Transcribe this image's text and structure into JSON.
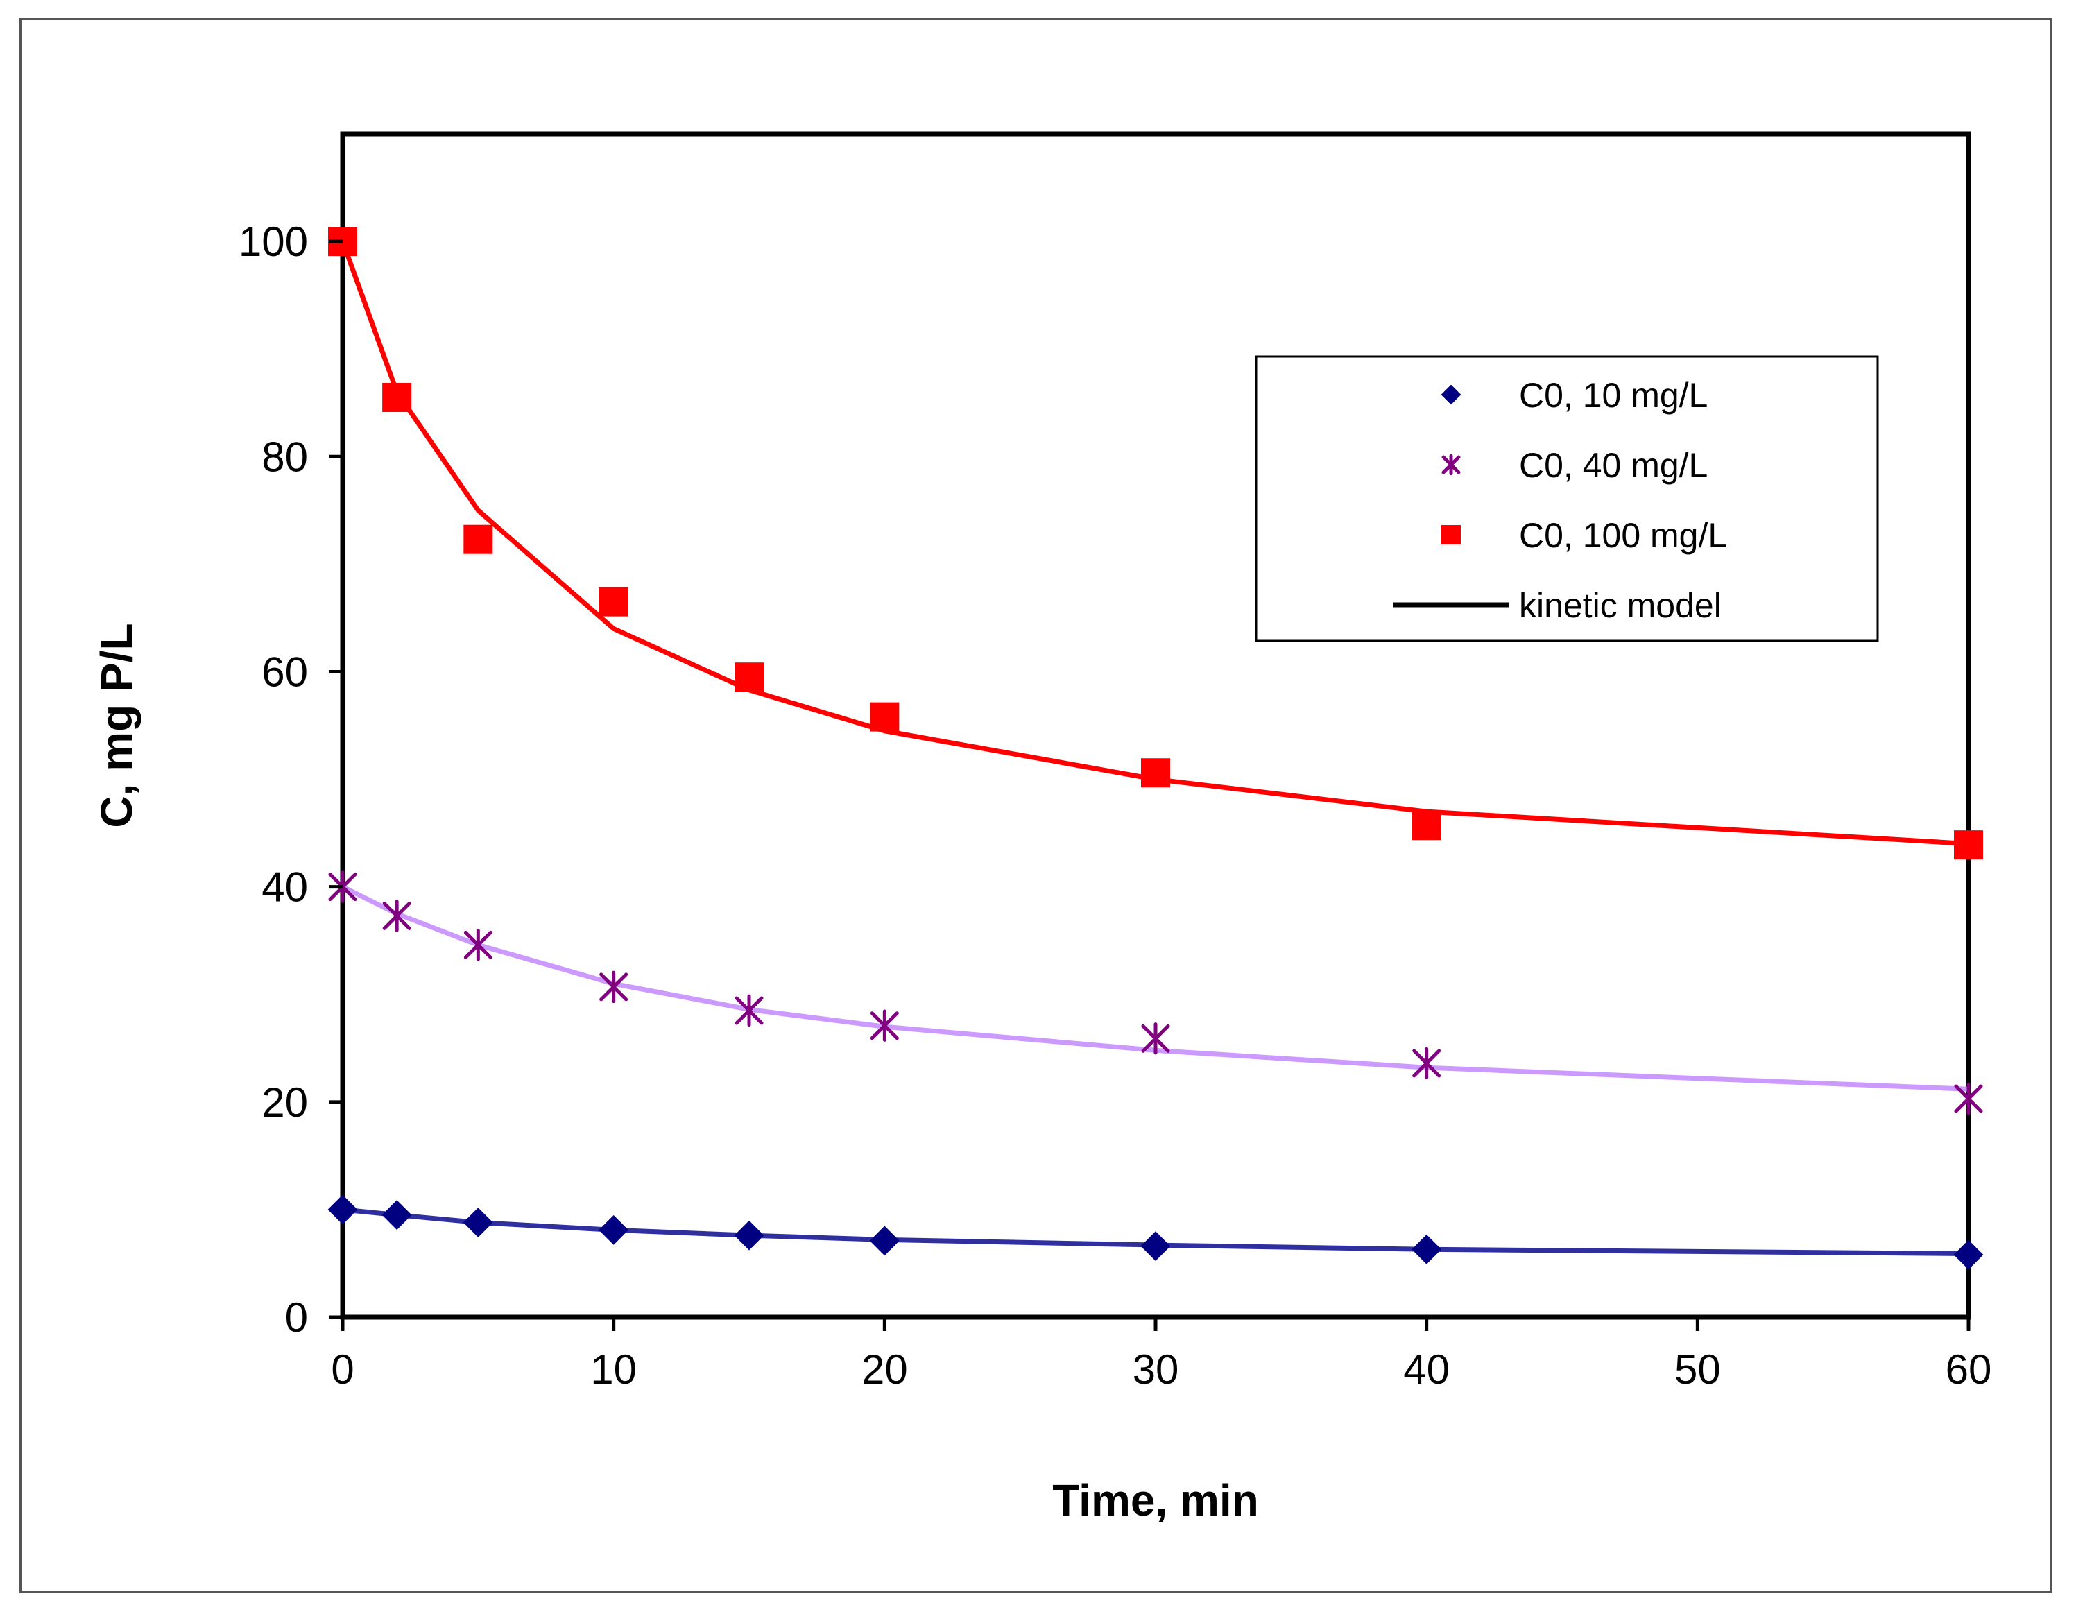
{
  "chart_data": {
    "type": "scatter",
    "title": "",
    "xlabel": "Time, min",
    "ylabel": "C, mg P/L",
    "xlim": [
      0,
      60
    ],
    "ylim": [
      0,
      110
    ],
    "x_ticks": [
      0,
      10,
      20,
      30,
      40,
      50,
      60
    ],
    "y_ticks": [
      0,
      20,
      40,
      60,
      80,
      100
    ],
    "grid": false,
    "legend_position": "top-right",
    "series": [
      {
        "name": "C0, 10 mg/L",
        "marker": "diamond",
        "color": "#000080",
        "x": [
          0,
          2,
          5,
          10,
          15,
          20,
          30,
          40,
          60
        ],
        "y": [
          10.0,
          9.5,
          8.8,
          8.1,
          7.6,
          7.1,
          6.6,
          6.3,
          5.8
        ]
      },
      {
        "name": "C0, 40 mg/L",
        "marker": "asterisk",
        "color": "#800080",
        "x": [
          0,
          2,
          5,
          10,
          15,
          20,
          30,
          40,
          60
        ],
        "y": [
          40.0,
          37.3,
          34.6,
          30.7,
          28.5,
          27.1,
          25.9,
          23.6,
          20.3
        ]
      },
      {
        "name": "C0, 100 mg/L",
        "marker": "square",
        "color": "#ff0000",
        "x": [
          0,
          2,
          5,
          10,
          15,
          20,
          30,
          40,
          60
        ],
        "y": [
          100.0,
          85.5,
          72.3,
          66.5,
          59.5,
          55.8,
          50.6,
          45.7,
          43.9
        ]
      }
    ],
    "model_lines": [
      {
        "name": "kinetic model",
        "for": "C0, 10 mg/L",
        "color": "#2f2f9f",
        "x": [
          0,
          2,
          5,
          10,
          15,
          20,
          30,
          40,
          60
        ],
        "y": [
          10.0,
          9.5,
          8.8,
          8.1,
          7.6,
          7.2,
          6.7,
          6.3,
          5.9
        ]
      },
      {
        "name": "kinetic model",
        "for": "C0, 40 mg/L",
        "color": "#cc99ff",
        "x": [
          0,
          2,
          5,
          10,
          15,
          20,
          30,
          40,
          60
        ],
        "y": [
          40.0,
          37.5,
          34.6,
          31.0,
          28.6,
          27.0,
          24.8,
          23.2,
          21.2
        ]
      },
      {
        "name": "kinetic model",
        "for": "C0, 100 mg/L",
        "color": "#ff0000",
        "x": [
          0,
          2,
          5,
          10,
          15,
          20,
          30,
          40,
          60
        ],
        "y": [
          100.0,
          86.0,
          75.0,
          64.0,
          58.3,
          54.5,
          50.0,
          47.0,
          44.0
        ]
      }
    ],
    "legend": [
      {
        "label": "C0, 10 mg/L",
        "marker": "diamond",
        "color": "#000080"
      },
      {
        "label": "C0, 40 mg/L",
        "marker": "asterisk",
        "color": "#800080"
      },
      {
        "label": "C0, 100 mg/L",
        "marker": "square",
        "color": "#ff0000"
      },
      {
        "label": "kinetic model",
        "marker": "line",
        "color": "#000000"
      }
    ]
  }
}
